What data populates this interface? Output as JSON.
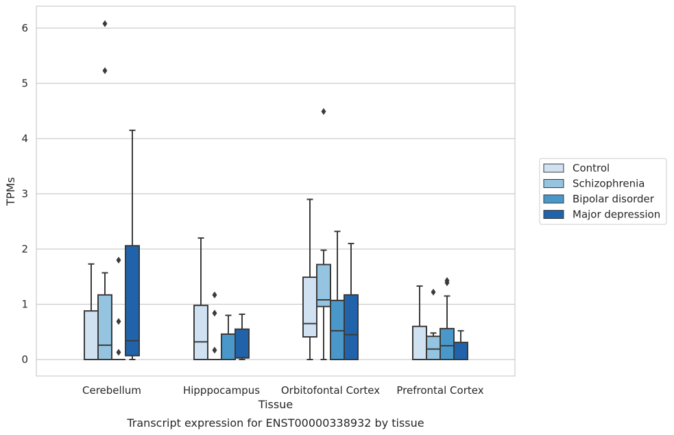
{
  "chart_data": {
    "type": "box",
    "caption": "Transcript expression for ENST00000338932 by tissue",
    "xlabel": "Tissue",
    "ylabel": "TPMs",
    "ylim": [
      -0.3,
      6.4
    ],
    "yticks": [
      0,
      1,
      2,
      3,
      4,
      5,
      6
    ],
    "grid": "horizontal",
    "legend_position": "right",
    "categories": [
      "Cerebellum",
      "Hipppocampus",
      "Orbitofontal Cortex",
      "Prefrontal Cortex"
    ],
    "series": [
      {
        "name": "Control",
        "color": "#d0e1f2",
        "boxes": [
          {
            "q1": 0,
            "median": 0,
            "q3": 0.88,
            "whislo": 0,
            "whishi": 1.73,
            "fliers": []
          },
          {
            "q1": 0,
            "median": 0.32,
            "q3": 0.98,
            "whislo": 0,
            "whishi": 2.2,
            "fliers": []
          },
          {
            "q1": 0.41,
            "median": 0.65,
            "q3": 1.49,
            "whislo": 0,
            "whishi": 2.9,
            "fliers": []
          },
          {
            "q1": 0,
            "median": 0,
            "q3": 0.6,
            "whislo": 0,
            "whishi": 1.33,
            "fliers": []
          }
        ]
      },
      {
        "name": "Schizophrenia",
        "color": "#94c4df",
        "boxes": [
          {
            "q1": 0,
            "median": 0.26,
            "q3": 1.17,
            "whislo": 0,
            "whishi": 1.57,
            "fliers": [
              5.23,
              6.08
            ]
          },
          {
            "q1": 0,
            "median": 0,
            "q3": 0,
            "whislo": 0,
            "whishi": 0,
            "fliers": [
              0.17,
              0.84,
              1.17
            ]
          },
          {
            "q1": 0.96,
            "median": 1.08,
            "q3": 1.72,
            "whislo": 0,
            "whishi": 1.98,
            "fliers": [
              4.49
            ]
          },
          {
            "q1": 0,
            "median": 0.19,
            "q3": 0.42,
            "whislo": 0,
            "whishi": 0.48,
            "fliers": [
              1.22
            ]
          }
        ]
      },
      {
        "name": "Bipolar disorder",
        "color": "#4a98c9",
        "boxes": [
          {
            "q1": 0,
            "median": 0,
            "q3": 0,
            "whislo": 0,
            "whishi": 0,
            "fliers": [
              0.13,
              0.69,
              1.8
            ]
          },
          {
            "q1": 0,
            "median": 0,
            "q3": 0.46,
            "whislo": 0,
            "whishi": 0.8,
            "fliers": []
          },
          {
            "q1": 0,
            "median": 0.52,
            "q3": 1.07,
            "whislo": 0,
            "whishi": 2.32,
            "fliers": []
          },
          {
            "q1": 0,
            "median": 0.25,
            "q3": 0.56,
            "whislo": 0,
            "whishi": 1.15,
            "fliers": [
              1.39,
              1.43
            ]
          }
        ]
      },
      {
        "name": "Major depression",
        "color": "#2163aa",
        "boxes": [
          {
            "q1": 0.07,
            "median": 0.34,
            "q3": 2.06,
            "whislo": 0,
            "whishi": 4.15,
            "fliers": []
          },
          {
            "q1": 0.03,
            "median": 0.03,
            "q3": 0.55,
            "whislo": 0,
            "whishi": 0.82,
            "fliers": []
          },
          {
            "q1": 0,
            "median": 0.45,
            "q3": 1.17,
            "whislo": 0,
            "whishi": 2.1,
            "fliers": []
          },
          {
            "q1": 0,
            "median": 0,
            "q3": 0.31,
            "whislo": 0,
            "whishi": 0.52,
            "fliers": []
          }
        ]
      }
    ]
  }
}
